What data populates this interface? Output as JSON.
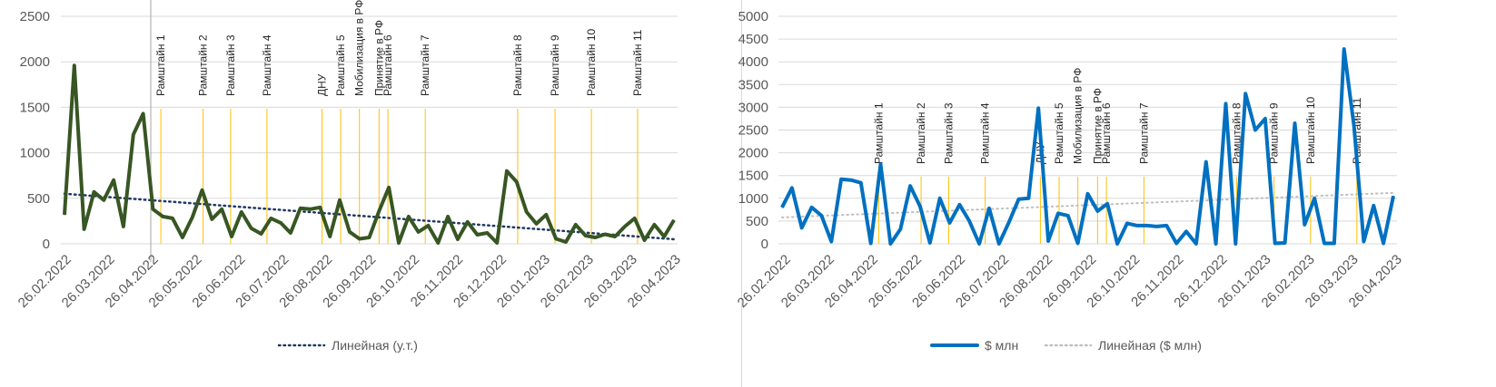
{
  "chart_data": [
    {
      "type": "line",
      "ylim": [
        0,
        2500
      ],
      "yticks": [
        0,
        500,
        1000,
        1500,
        2000,
        2500
      ],
      "x_tick_labels": [
        "26.02.2022",
        "26.03.2022",
        "26.04.2022",
        "26.05.2022",
        "26.06.2022",
        "26.07.2022",
        "26.08.2022",
        "26.09.2022",
        "26.10.2022",
        "26.11.2022",
        "26.12.2022",
        "26.01.2023",
        "26.02.2023",
        "26.03.2023",
        "26.04.2023"
      ],
      "colors": {
        "series": "#375623",
        "trend": "#1f3864",
        "event_line": "#ffc000",
        "divider": "#a6a6a6"
      },
      "series": [
        {
          "values": [
            320,
            1960,
            160,
            570,
            480,
            700,
            190,
            1200,
            1430,
            380,
            300,
            280,
            70,
            290,
            590,
            270,
            380,
            80,
            350,
            170,
            110,
            280,
            230,
            120,
            390,
            380,
            400,
            80,
            480,
            130,
            55,
            70,
            360,
            620,
            10,
            300,
            130,
            200,
            10,
            300,
            50,
            240,
            100,
            120,
            10,
            800,
            680,
            350,
            220,
            320,
            55,
            20,
            210,
            90,
            70,
            105,
            80,
            190,
            280,
            40,
            210,
            80,
            260
          ]
        }
      ],
      "trend": {
        "name": "Линейная (у.т.)",
        "start": 550,
        "end": 50
      },
      "events": [
        {
          "label": "Рамштайн 1",
          "x": 9.8
        },
        {
          "label": "Рамштайн 2",
          "x": 14.1
        },
        {
          "label": "Рамштайн 3",
          "x": 16.9
        },
        {
          "label": "Рамштайн 4",
          "x": 20.6
        },
        {
          "label": "ДНУ",
          "x": 26.2
        },
        {
          "label": "Рамштайн 5",
          "x": 28.1
        },
        {
          "label": "Мобилизация в РФ",
          "x": 30.0
        },
        {
          "label": "Принятие в РФ",
          "x": 32.0
        },
        {
          "label": "Рамштайн 6",
          "x": 32.9
        },
        {
          "label": "Рамштайн 7",
          "x": 36.7
        },
        {
          "label": "Рамштайн 8",
          "x": 46.1
        },
        {
          "label": "Рамштайн 9",
          "x": 49.9
        },
        {
          "label": "Рамштайн 10",
          "x": 53.6
        },
        {
          "label": "Рамштайн 11",
          "x": 58.3
        }
      ]
    },
    {
      "type": "line",
      "ylim": [
        0,
        5000
      ],
      "yticks": [
        0,
        500,
        1000,
        1500,
        2000,
        2500,
        3000,
        3500,
        4000,
        4500,
        5000
      ],
      "x_tick_labels": [
        "26.02.2022",
        "26.03.2022",
        "26.04.2022",
        "26.05.2022",
        "26.06.2022",
        "26.07.2022",
        "26.08.2022",
        "26.09.2022",
        "26.10.2022",
        "26.11.2022",
        "26.12.2022",
        "26.01.2023",
        "26.02.2023",
        "26.03.2023",
        "26.04.2023"
      ],
      "colors": {
        "series": "#0070c0",
        "trend": "#bfbfbf",
        "event_line": "#ffc000"
      },
      "series": [
        {
          "name": "$ млн",
          "values": [
            800,
            1230,
            350,
            800,
            620,
            50,
            1420,
            1400,
            1340,
            10,
            1750,
            0,
            320,
            1270,
            820,
            20,
            1000,
            460,
            860,
            500,
            0,
            780,
            0,
            470,
            980,
            1000,
            2980,
            60,
            670,
            620,
            10,
            1100,
            720,
            880,
            0,
            450,
            400,
            400,
            380,
            400,
            10,
            270,
            0,
            1800,
            0,
            3080,
            0,
            3300,
            2500,
            2750,
            10,
            20,
            2650,
            420,
            1000,
            10,
            10,
            4280,
            2600,
            50,
            840,
            10,
            1050
          ]
        }
      ],
      "trend": {
        "name": "Линейная ($ млн)",
        "start": 580,
        "end": 1120
      },
      "events": [
        {
          "label": "Рамштайн 1",
          "x": 9.8
        },
        {
          "label": "Рамштайн 2",
          "x": 14.1
        },
        {
          "label": "Рамштайн 3",
          "x": 16.9
        },
        {
          "label": "Рамштайн 4",
          "x": 20.6
        },
        {
          "label": "ДНУ",
          "x": 26.2
        },
        {
          "label": "Рамштайн 5",
          "x": 28.1
        },
        {
          "label": "Мобилизация в РФ",
          "x": 30.0
        },
        {
          "label": "Принятие в РФ",
          "x": 32.0
        },
        {
          "label": "Рамштайн 6",
          "x": 32.9
        },
        {
          "label": "Рамштайн 7",
          "x": 36.7
        },
        {
          "label": "Рамштайн 8",
          "x": 46.1
        },
        {
          "label": "Рамштайн 9",
          "x": 49.9
        },
        {
          "label": "Рамштайн 10",
          "x": 53.6
        },
        {
          "label": "Рамштайн 11",
          "x": 58.3
        }
      ]
    }
  ]
}
